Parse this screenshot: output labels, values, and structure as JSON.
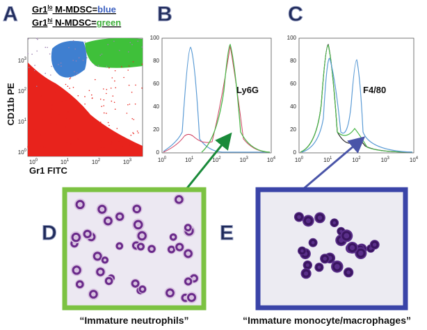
{
  "panels": {
    "a": {
      "letter": "A",
      "legend": [
        {
          "prefix": "Gr1",
          "sup": "lo",
          "text": " M-MDSC=",
          "color_word": "blue"
        },
        {
          "prefix": "Gr1",
          "sup": "hi",
          "text": " N-MDSC=",
          "color_word": "green"
        }
      ],
      "y_label": "CD11b PE",
      "x_label": "Gr1 FITC",
      "tick_base": "10",
      "x_exponents": [
        "0",
        "1",
        "2",
        "3"
      ],
      "y_exponents": [
        "0",
        "1",
        "2",
        "3"
      ]
    },
    "b": {
      "letter": "B",
      "marker": "Ly6G",
      "y_ticks": [
        "0",
        "20",
        "40",
        "60",
        "80",
        "100"
      ],
      "x_exponents": [
        "0",
        "1",
        "2",
        "3",
        "4"
      ]
    },
    "c": {
      "letter": "C",
      "marker": "F4/80",
      "y_ticks": [
        "0",
        "20",
        "40",
        "60",
        "80",
        "100"
      ],
      "x_exponents": [
        "0",
        "1",
        "2",
        "3",
        "4"
      ]
    },
    "d": {
      "letter": "D",
      "caption": "“Immature neutrophils”"
    },
    "e": {
      "letter": "E",
      "caption": "“Immature monocyte/macrophages”"
    }
  }
}
